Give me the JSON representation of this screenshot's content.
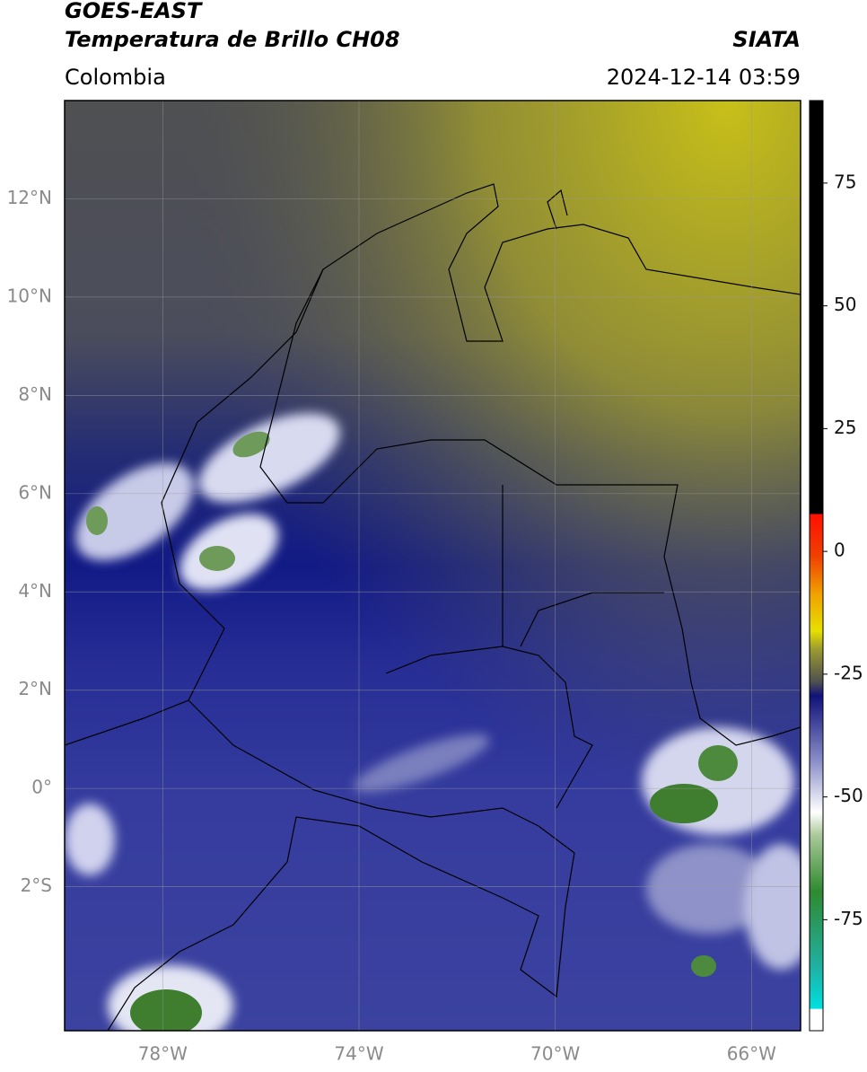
{
  "header": {
    "title": "GOES-EAST",
    "subtitle": "Temperatura de Brillo CH08",
    "organization": "SIATA",
    "region": "Colombia",
    "datetime": "2024-12-14 03:59"
  },
  "map": {
    "lon_range": [
      -80,
      -65
    ],
    "lat_range": [
      14,
      -4.93
    ],
    "lat_ticks": [
      {
        "value": 12,
        "label": "12°N"
      },
      {
        "value": 10,
        "label": "10°N"
      },
      {
        "value": 8,
        "label": "8°N"
      },
      {
        "value": 6,
        "label": "6°N"
      },
      {
        "value": 4,
        "label": "4°N"
      },
      {
        "value": 2,
        "label": "2°N"
      },
      {
        "value": 0,
        "label": "0°"
      },
      {
        "value": -2,
        "label": "2°S"
      }
    ],
    "lon_ticks": [
      {
        "value": -78,
        "label": "78°W"
      },
      {
        "value": -74,
        "label": "74°W"
      },
      {
        "value": -70,
        "label": "70°W"
      },
      {
        "value": -66,
        "label": "66°W"
      }
    ]
  },
  "colorbar": {
    "lim": [
      -97.6,
      91.8
    ],
    "ticks": [
      75,
      50,
      25,
      0,
      -25,
      -50,
      -75
    ]
  }
}
